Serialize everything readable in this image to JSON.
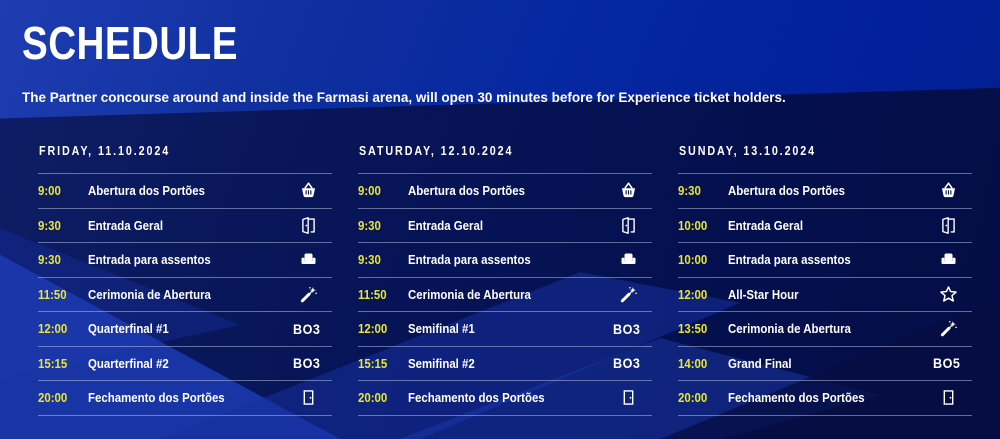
{
  "header": {
    "title": "SCHEDULE",
    "subtitle": "The Partner concourse around and inside the Farmasi arena, will open 30 minutes before for Experience ticket holders."
  },
  "colors": {
    "accent_yellow": "#e9e72f",
    "text_white": "#ffffff",
    "background_blue": "#0b27a0",
    "dark_navy": "#0a1148"
  },
  "columns": [
    {
      "day": "FRIDAY, 11.10.2024",
      "rows": [
        {
          "time": "9:00",
          "label": "Abertura dos Portões",
          "icon": "basket-icon"
        },
        {
          "time": "9:30",
          "label": "Entrada Geral",
          "icon": "door-open-icon"
        },
        {
          "time": "9:30",
          "label": "Entrada para assentos",
          "icon": "seat-icon"
        },
        {
          "time": "11:50",
          "label": "Cerimonia de Abertura",
          "icon": "fireworks-icon"
        },
        {
          "time": "12:00",
          "label": "Quarterfinal #1",
          "badge": "BO3"
        },
        {
          "time": "15:15",
          "label": "Quarterfinal #2",
          "badge": "BO3"
        },
        {
          "time": "20:00",
          "label": "Fechamento dos Portões",
          "icon": "door-closed-icon"
        }
      ]
    },
    {
      "day": "SATURDAY, 12.10.2024",
      "rows": [
        {
          "time": "9:00",
          "label": "Abertura dos Portões",
          "icon": "basket-icon"
        },
        {
          "time": "9:30",
          "label": "Entrada Geral",
          "icon": "door-open-icon"
        },
        {
          "time": "9:30",
          "label": "Entrada para assentos",
          "icon": "seat-icon"
        },
        {
          "time": "11:50",
          "label": "Cerimonia de Abertura",
          "icon": "fireworks-icon"
        },
        {
          "time": "12:00",
          "label": "Semifinal #1",
          "badge": "BO3"
        },
        {
          "time": "15:15",
          "label": "Semifinal #2",
          "badge": "BO3"
        },
        {
          "time": "20:00",
          "label": "Fechamento dos Portões",
          "icon": "door-closed-icon"
        }
      ]
    },
    {
      "day": "SUNDAY, 13.10.2024",
      "rows": [
        {
          "time": "9:30",
          "label": "Abertura dos Portões",
          "icon": "basket-icon"
        },
        {
          "time": "10:00",
          "label": "Entrada Geral",
          "icon": "door-open-icon"
        },
        {
          "time": "10:00",
          "label": "Entrada para assentos",
          "icon": "seat-icon"
        },
        {
          "time": "12:00",
          "label": "All-Star Hour",
          "icon": "star-icon"
        },
        {
          "time": "13:50",
          "label": "Cerimonia de Abertura",
          "icon": "fireworks-icon"
        },
        {
          "time": "14:00",
          "label": "Grand Final",
          "badge": "BO5"
        },
        {
          "time": "20:00",
          "label": "Fechamento dos Portões",
          "icon": "door-closed-icon"
        }
      ]
    }
  ]
}
